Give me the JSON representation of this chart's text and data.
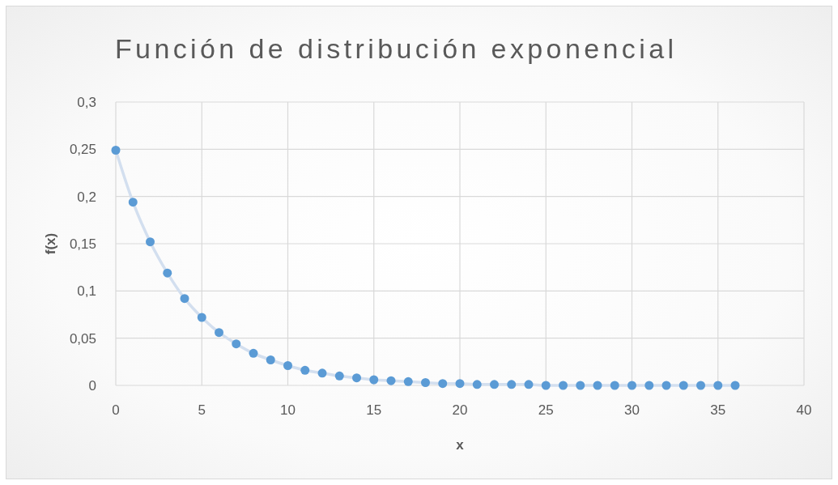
{
  "chart_data": {
    "type": "scatter",
    "title": "Función de distribución exponencial",
    "xlabel": "x",
    "ylabel": "f(x)",
    "xlim": [
      0,
      40
    ],
    "xticks": [
      0,
      5,
      10,
      15,
      20,
      25,
      30,
      35,
      40
    ],
    "ylim": [
      0,
      0.3
    ],
    "yticks": [
      {
        "value": 0,
        "label": "0"
      },
      {
        "value": 0.05,
        "label": "0,05"
      },
      {
        "value": 0.1,
        "label": "0,1"
      },
      {
        "value": 0.15,
        "label": "0,15"
      },
      {
        "value": 0.2,
        "label": "0,2"
      },
      {
        "value": 0.25,
        "label": "0,25"
      },
      {
        "value": 0.3,
        "label": "0,3"
      }
    ],
    "grid": true,
    "series": [
      {
        "type": "line",
        "color": "#d3dfef",
        "marker": "none",
        "x": [
          0,
          1,
          2,
          3,
          4,
          5,
          6,
          7,
          8,
          9,
          10,
          11,
          12,
          13,
          14,
          15,
          16,
          17,
          18,
          19,
          20,
          21,
          22,
          23,
          24,
          25,
          26,
          27,
          28,
          29,
          30,
          31,
          32,
          33,
          34,
          35,
          36
        ],
        "values": [
          0.249,
          0.194,
          0.152,
          0.119,
          0.092,
          0.072,
          0.056,
          0.044,
          0.034,
          0.027,
          0.021,
          0.016,
          0.013,
          0.01,
          0.008,
          0.006,
          0.005,
          0.004,
          0.003,
          0.002,
          0.002,
          0.001,
          0.001,
          0.001,
          0.001,
          0.0,
          0.0,
          0.0,
          0.0,
          0.0,
          0.0,
          0.0,
          0.0,
          0.0,
          0.0,
          0.0,
          0.0
        ]
      },
      {
        "color": "#5b9bd5",
        "marker": "circle",
        "x": [
          0,
          1,
          2,
          3,
          4,
          5,
          6,
          7,
          8,
          9,
          10,
          11,
          12,
          13,
          14,
          15,
          16,
          17,
          18,
          19,
          20,
          21,
          22,
          23,
          24,
          25,
          26,
          27,
          28,
          29,
          30,
          31,
          32,
          33,
          34,
          35,
          36
        ],
        "values": [
          0.249,
          0.194,
          0.152,
          0.119,
          0.092,
          0.072,
          0.056,
          0.044,
          0.034,
          0.027,
          0.021,
          0.016,
          0.013,
          0.01,
          0.008,
          0.006,
          0.005,
          0.004,
          0.003,
          0.002,
          0.002,
          0.001,
          0.001,
          0.001,
          0.001,
          0.0,
          0.0,
          0.0,
          0.0,
          0.0,
          0.0,
          0.0,
          0.0,
          0.0,
          0.0,
          0.0,
          0.0
        ]
      }
    ]
  }
}
